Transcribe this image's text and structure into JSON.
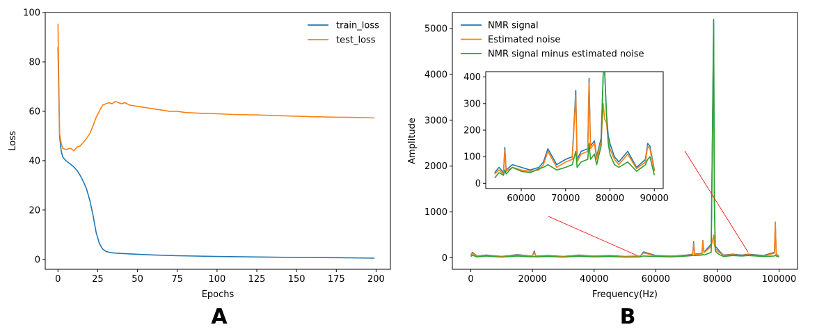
{
  "chart_data": [
    {
      "type": "line",
      "panel_label": "A",
      "xlabel": "Epochs",
      "ylabel": "Loss",
      "xlim": [
        -8,
        209
      ],
      "ylim": [
        -4,
        100
      ],
      "xticks": [
        0,
        25,
        50,
        75,
        100,
        125,
        150,
        175,
        200
      ],
      "yticks": [
        0,
        20,
        40,
        60,
        80,
        100
      ],
      "legend_position": "top-right",
      "grid": false,
      "series": [
        {
          "name": "train_loss",
          "color": "#1f77b4",
          "x": [
            0,
            1,
            2,
            3,
            5,
            8,
            10,
            12,
            14,
            16,
            18,
            20,
            22,
            24,
            26,
            28,
            30,
            32,
            35,
            40,
            50,
            60,
            75,
            100,
            125,
            150,
            175,
            199
          ],
          "y": [
            86,
            50,
            44,
            41.5,
            40,
            38.5,
            37.5,
            36,
            34,
            31.5,
            28.5,
            24,
            18,
            11,
            6.5,
            4.3,
            3.3,
            2.9,
            2.6,
            2.4,
            2.1,
            1.8,
            1.5,
            1.2,
            1.0,
            0.8,
            0.7,
            0.5
          ]
        },
        {
          "name": "test_loss",
          "color": "#ff7f0e",
          "x": [
            0,
            1,
            2,
            3,
            5,
            8,
            10,
            12,
            14,
            16,
            18,
            20,
            22,
            24,
            26,
            28,
            30,
            32,
            34,
            36,
            38,
            40,
            42,
            45,
            50,
            55,
            60,
            65,
            70,
            75,
            80,
            90,
            100,
            110,
            125,
            140,
            150,
            160,
            175,
            190,
            199
          ],
          "y": [
            95.5,
            51,
            47,
            45,
            44.5,
            45,
            44,
            45.5,
            46,
            47.5,
            49,
            51,
            54,
            57.5,
            60,
            62.5,
            63,
            63.5,
            63,
            64,
            63.5,
            63,
            63.5,
            62.5,
            62,
            61.5,
            61,
            60.5,
            60,
            60,
            59.5,
            59.2,
            59,
            58.7,
            58.5,
            58.2,
            58,
            57.8,
            57.6,
            57.5,
            57.3
          ]
        }
      ]
    },
    {
      "type": "line",
      "panel_label": "B",
      "xlabel": "Frequency(Hz)",
      "ylabel": "Amplitude",
      "xlim": [
        -6000,
        106000
      ],
      "ylim": [
        -250,
        5350
      ],
      "xticks": [
        0,
        20000,
        40000,
        60000,
        80000,
        100000
      ],
      "yticks": [
        0,
        1000,
        2000,
        3000,
        4000,
        5000
      ],
      "legend_position": "top-left",
      "grid": false,
      "series": [
        {
          "name": "NMR signal",
          "color": "#1f77b4",
          "x": [
            0,
            500,
            2000,
            5000,
            10000,
            15000,
            20000,
            20600,
            21000,
            25000,
            30000,
            35000,
            40000,
            45000,
            50000,
            55000,
            56000,
            60000,
            65000,
            70000,
            72000,
            72300,
            72600,
            75000,
            75300,
            75600,
            78000,
            78800,
            79000,
            79300,
            80000,
            81000,
            82000,
            85000,
            88000,
            90000,
            95000,
            98500,
            98800,
            99100,
            100000
          ],
          "y": [
            60,
            120,
            40,
            60,
            30,
            70,
            40,
            150,
            40,
            50,
            30,
            60,
            40,
            50,
            30,
            40,
            130,
            50,
            40,
            60,
            80,
            350,
            80,
            100,
            380,
            120,
            300,
            5200,
            1400,
            250,
            200,
            120,
            60,
            80,
            60,
            80,
            50,
            120,
            770,
            80,
            40
          ]
        },
        {
          "name": "Estimated noise",
          "color": "#ff7f0e",
          "x": [
            0,
            500,
            2000,
            5000,
            10000,
            15000,
            20000,
            20600,
            21000,
            25000,
            30000,
            35000,
            40000,
            45000,
            50000,
            55000,
            56000,
            60000,
            65000,
            70000,
            72000,
            72300,
            72600,
            75000,
            75300,
            75600,
            78000,
            78800,
            79000,
            79300,
            80000,
            81000,
            82000,
            85000,
            88000,
            90000,
            95000,
            98500,
            98800,
            99100,
            100000
          ],
          "y": [
            50,
            100,
            35,
            50,
            25,
            60,
            35,
            120,
            35,
            40,
            25,
            50,
            35,
            40,
            25,
            35,
            110,
            40,
            35,
            50,
            70,
            320,
            70,
            90,
            370,
            110,
            250,
            500,
            300,
            200,
            150,
            100,
            50,
            70,
            50,
            70,
            40,
            100,
            780,
            70,
            35
          ]
        },
        {
          "name": "NMR signal minus estimated noise",
          "color": "#2ca02c",
          "x": [
            0,
            500,
            2000,
            5000,
            10000,
            15000,
            20000,
            20600,
            21000,
            25000,
            30000,
            35000,
            40000,
            45000,
            50000,
            55000,
            56000,
            60000,
            65000,
            70000,
            72000,
            72300,
            72600,
            75000,
            75300,
            75600,
            78000,
            78800,
            79000,
            79300,
            80000,
            81000,
            82000,
            85000,
            88000,
            90000,
            95000,
            98500,
            98800,
            99100,
            100000
          ],
          "y": [
            30,
            60,
            20,
            40,
            15,
            40,
            20,
            30,
            20,
            30,
            15,
            35,
            20,
            30,
            15,
            20,
            40,
            30,
            20,
            40,
            50,
            60,
            50,
            60,
            80,
            60,
            120,
            5100,
            1300,
            150,
            100,
            60,
            30,
            50,
            40,
            50,
            30,
            40,
            60,
            40,
            20
          ]
        }
      ],
      "inset": {
        "xlim": [
          52000,
          92000
        ],
        "ylim": [
          -20,
          420
        ],
        "xticks": [
          60000,
          70000,
          80000,
          90000
        ],
        "yticks": [
          0,
          100,
          200,
          300,
          400
        ],
        "series": [
          {
            "name": "NMR signal",
            "color": "#1f77b4",
            "x": [
              54000,
              55000,
              56000,
              56300,
              56600,
              58000,
              60000,
              62000,
              64000,
              65000,
              66000,
              68000,
              70000,
              71500,
              72300,
              72600,
              73500,
              75000,
              75300,
              75600,
              76500,
              77000,
              78000,
              78500,
              78800,
              79200,
              79600,
              80000,
              81000,
              82000,
              84000,
              86000,
              88000,
              88500,
              89000,
              90000
            ],
            "y": [
              40,
              60,
              40,
              135,
              50,
              70,
              60,
              50,
              60,
              80,
              130,
              70,
              90,
              100,
              350,
              90,
              120,
              130,
              395,
              140,
              160,
              100,
              170,
              420,
              420,
              260,
              180,
              150,
              100,
              80,
              120,
              60,
              90,
              150,
              140,
              50
            ]
          },
          {
            "name": "Estimated noise",
            "color": "#ff7f0e",
            "x": [
              54000,
              55000,
              56000,
              56300,
              56600,
              58000,
              60000,
              62000,
              64000,
              65000,
              66000,
              68000,
              70000,
              71500,
              72300,
              72600,
              73500,
              75000,
              75300,
              75600,
              76500,
              77000,
              78000,
              78500,
              78800,
              79200,
              79600,
              80000,
              81000,
              82000,
              84000,
              86000,
              88000,
              88500,
              89000,
              90000
            ],
            "y": [
              35,
              50,
              35,
              125,
              45,
              60,
              50,
              45,
              50,
              70,
              120,
              60,
              80,
              90,
              330,
              80,
              110,
              120,
              380,
              130,
              150,
              90,
              160,
              300,
              240,
              230,
              160,
              130,
              90,
              70,
              110,
              55,
              80,
              140,
              130,
              45
            ]
          },
          {
            "name": "NMR signal minus estimated noise",
            "color": "#2ca02c",
            "x": [
              54000,
              55000,
              56000,
              56300,
              56600,
              58000,
              60000,
              62000,
              64000,
              65000,
              66000,
              68000,
              70000,
              71500,
              72300,
              72600,
              73500,
              75000,
              75300,
              75600,
              76500,
              77000,
              78000,
              78500,
              78800,
              79200,
              79600,
              80000,
              81000,
              82000,
              84000,
              86000,
              88000,
              88500,
              89000,
              90000
            ],
            "y": [
              20,
              40,
              30,
              50,
              35,
              60,
              45,
              40,
              55,
              60,
              70,
              50,
              60,
              70,
              120,
              60,
              80,
              90,
              150,
              90,
              110,
              70,
              140,
              420,
              420,
              270,
              150,
              110,
              70,
              60,
              80,
              45,
              70,
              90,
              100,
              30
            ]
          }
        ]
      }
    }
  ]
}
